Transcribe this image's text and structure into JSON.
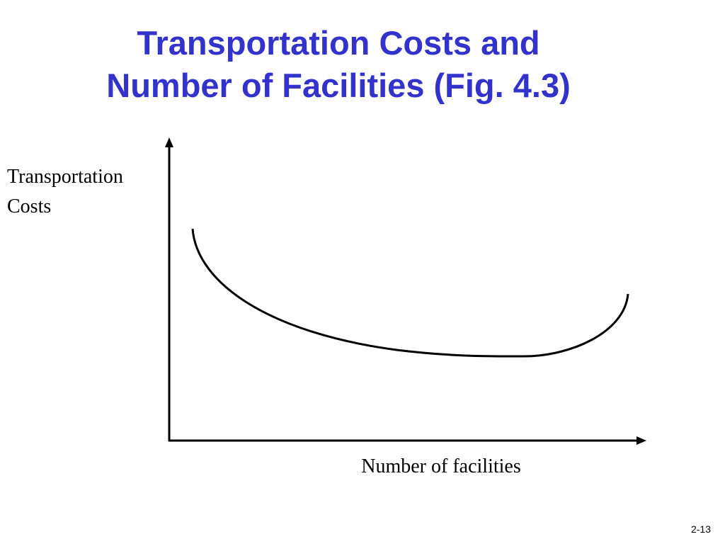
{
  "title": {
    "lines": [
      "Transportation Costs and",
      "Number of Facilities (Fig. 4.3)"
    ]
  },
  "diagram": {
    "y_axis_label": {
      "lines": [
        "Transportation",
        "Costs"
      ]
    },
    "x_axis_label": "Number of facilities"
  },
  "footer": {
    "page_number": "2-13"
  }
}
